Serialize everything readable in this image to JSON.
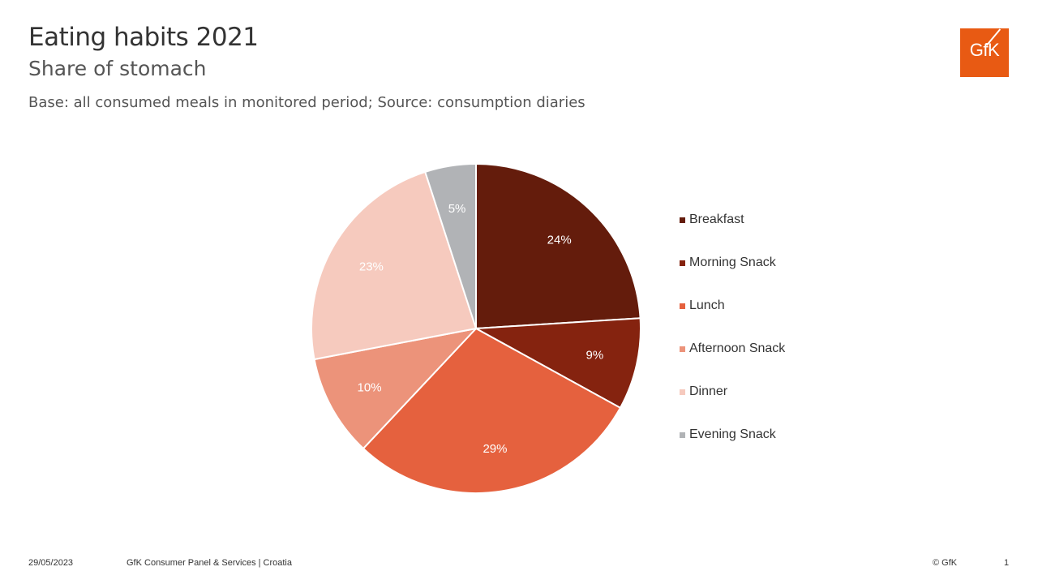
{
  "header": {
    "title": "Eating habits 2021",
    "subtitle": "Share of stomach",
    "base_note": "Base: all consumed meals in monitored period; Source: consumption diaries"
  },
  "logo": {
    "text": "GfK",
    "color": "#e85a13"
  },
  "chart_data": {
    "type": "pie",
    "title": "Eating habits 2021",
    "subtitle": "Share of stomach",
    "categories": [
      "Breakfast",
      "Morning Snack",
      "Lunch",
      "Afternoon Snack",
      "Dinner",
      "Evening Snack"
    ],
    "values": [
      24,
      9,
      29,
      10,
      23,
      5
    ],
    "data_labels": [
      "24%",
      "9%",
      "29%",
      "10%",
      "23%",
      "5%"
    ],
    "colors": [
      "#641c0c",
      "#85230f",
      "#e5613e",
      "#ec937a",
      "#f6cabe",
      "#b1b3b6"
    ],
    "start_angle": "12 o'clock",
    "direction": "clockwise",
    "legend_position": "right"
  },
  "footer": {
    "date": "29/05/2023",
    "source": "GfK Consumer Panel & Services | Croatia",
    "copyright": "© GfK",
    "page_number": "1"
  }
}
